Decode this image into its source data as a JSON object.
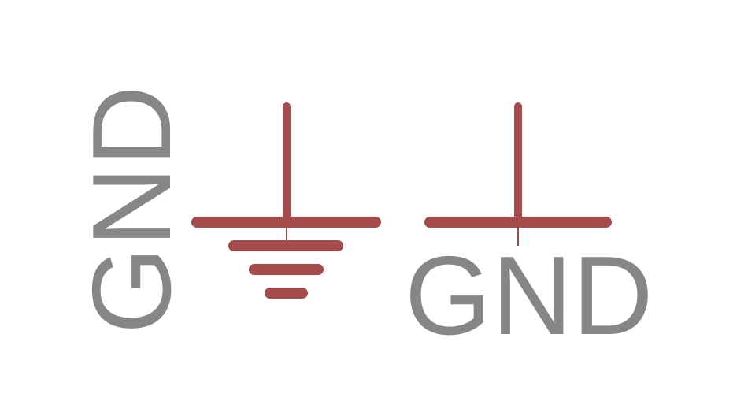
{
  "colors": {
    "background": "#ffffff",
    "symbol": "#a54b4b",
    "label": "#868686"
  },
  "symbols": [
    {
      "name": "earth-ground-symbol",
      "label": "GND",
      "label_orientation": "vertical"
    },
    {
      "name": "signal-ground-symbol",
      "label": "GND",
      "label_orientation": "horizontal"
    }
  ]
}
